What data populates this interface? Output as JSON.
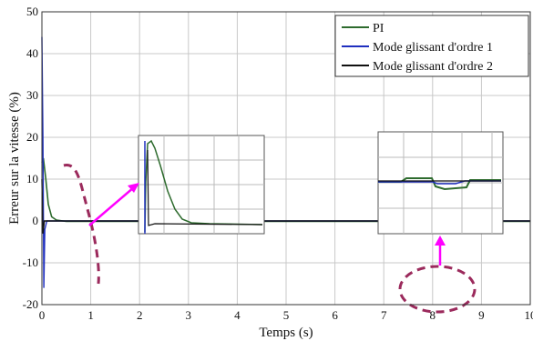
{
  "chart_data": {
    "type": "line",
    "xlabel": "Temps (s)",
    "ylabel": "Erreur sur la vitesse (%)",
    "xlim": [
      0,
      10
    ],
    "ylim": [
      -20,
      50
    ],
    "xticks": [
      "0",
      "1",
      "2",
      "3",
      "4",
      "5",
      "6",
      "7",
      "8",
      "9",
      "10"
    ],
    "yticks": [
      "-20",
      "-10",
      "0",
      "10",
      "20",
      "30",
      "40",
      "50"
    ],
    "grid": true,
    "legend": "top-right",
    "series": [
      {
        "name": "PI",
        "color": "#2e6b2e",
        "points": [
          [
            0,
            14
          ],
          [
            0.03,
            15
          ],
          [
            0.08,
            10
          ],
          [
            0.13,
            4
          ],
          [
            0.2,
            1
          ],
          [
            0.3,
            0.2
          ],
          [
            0.5,
            -0.1
          ],
          [
            1,
            -0.1
          ],
          [
            2,
            -0.1
          ],
          [
            2.05,
            0.5
          ],
          [
            2.1,
            3
          ],
          [
            2.15,
            7
          ],
          [
            2.2,
            9
          ],
          [
            2.3,
            8
          ],
          [
            2.4,
            6.5
          ],
          [
            2.6,
            4
          ],
          [
            2.8,
            1.8
          ],
          [
            3,
            0.6
          ],
          [
            3.3,
            0.1
          ],
          [
            4,
            -0.1
          ],
          [
            6,
            -0.1
          ],
          [
            7,
            -0.1
          ],
          [
            7.9,
            0.05
          ],
          [
            8.05,
            0.3
          ],
          [
            8.5,
            0.3
          ],
          [
            8.6,
            -0.8
          ],
          [
            9,
            -0.6
          ],
          [
            9.05,
            -0.1
          ],
          [
            10,
            -0.1
          ]
        ]
      },
      {
        "name": "Mode glissant d'ordre 1",
        "color": "#1f2fbf",
        "points": [
          [
            0,
            44
          ],
          [
            0.02,
            20
          ],
          [
            0.04,
            -16
          ],
          [
            0.06,
            -2
          ],
          [
            0.1,
            0
          ],
          [
            2,
            0
          ],
          [
            2.05,
            1
          ],
          [
            2.08,
            -0.5
          ],
          [
            2.12,
            0
          ],
          [
            10,
            0
          ]
        ]
      },
      {
        "name": "Mode glissant d'ordre 2",
        "color": "#111111",
        "points": [
          [
            0,
            10
          ],
          [
            0.02,
            -3
          ],
          [
            0.05,
            0
          ],
          [
            2,
            0
          ],
          [
            2.05,
            8
          ],
          [
            2.07,
            -1
          ],
          [
            2.1,
            0
          ],
          [
            10,
            0
          ]
        ]
      }
    ]
  }
}
